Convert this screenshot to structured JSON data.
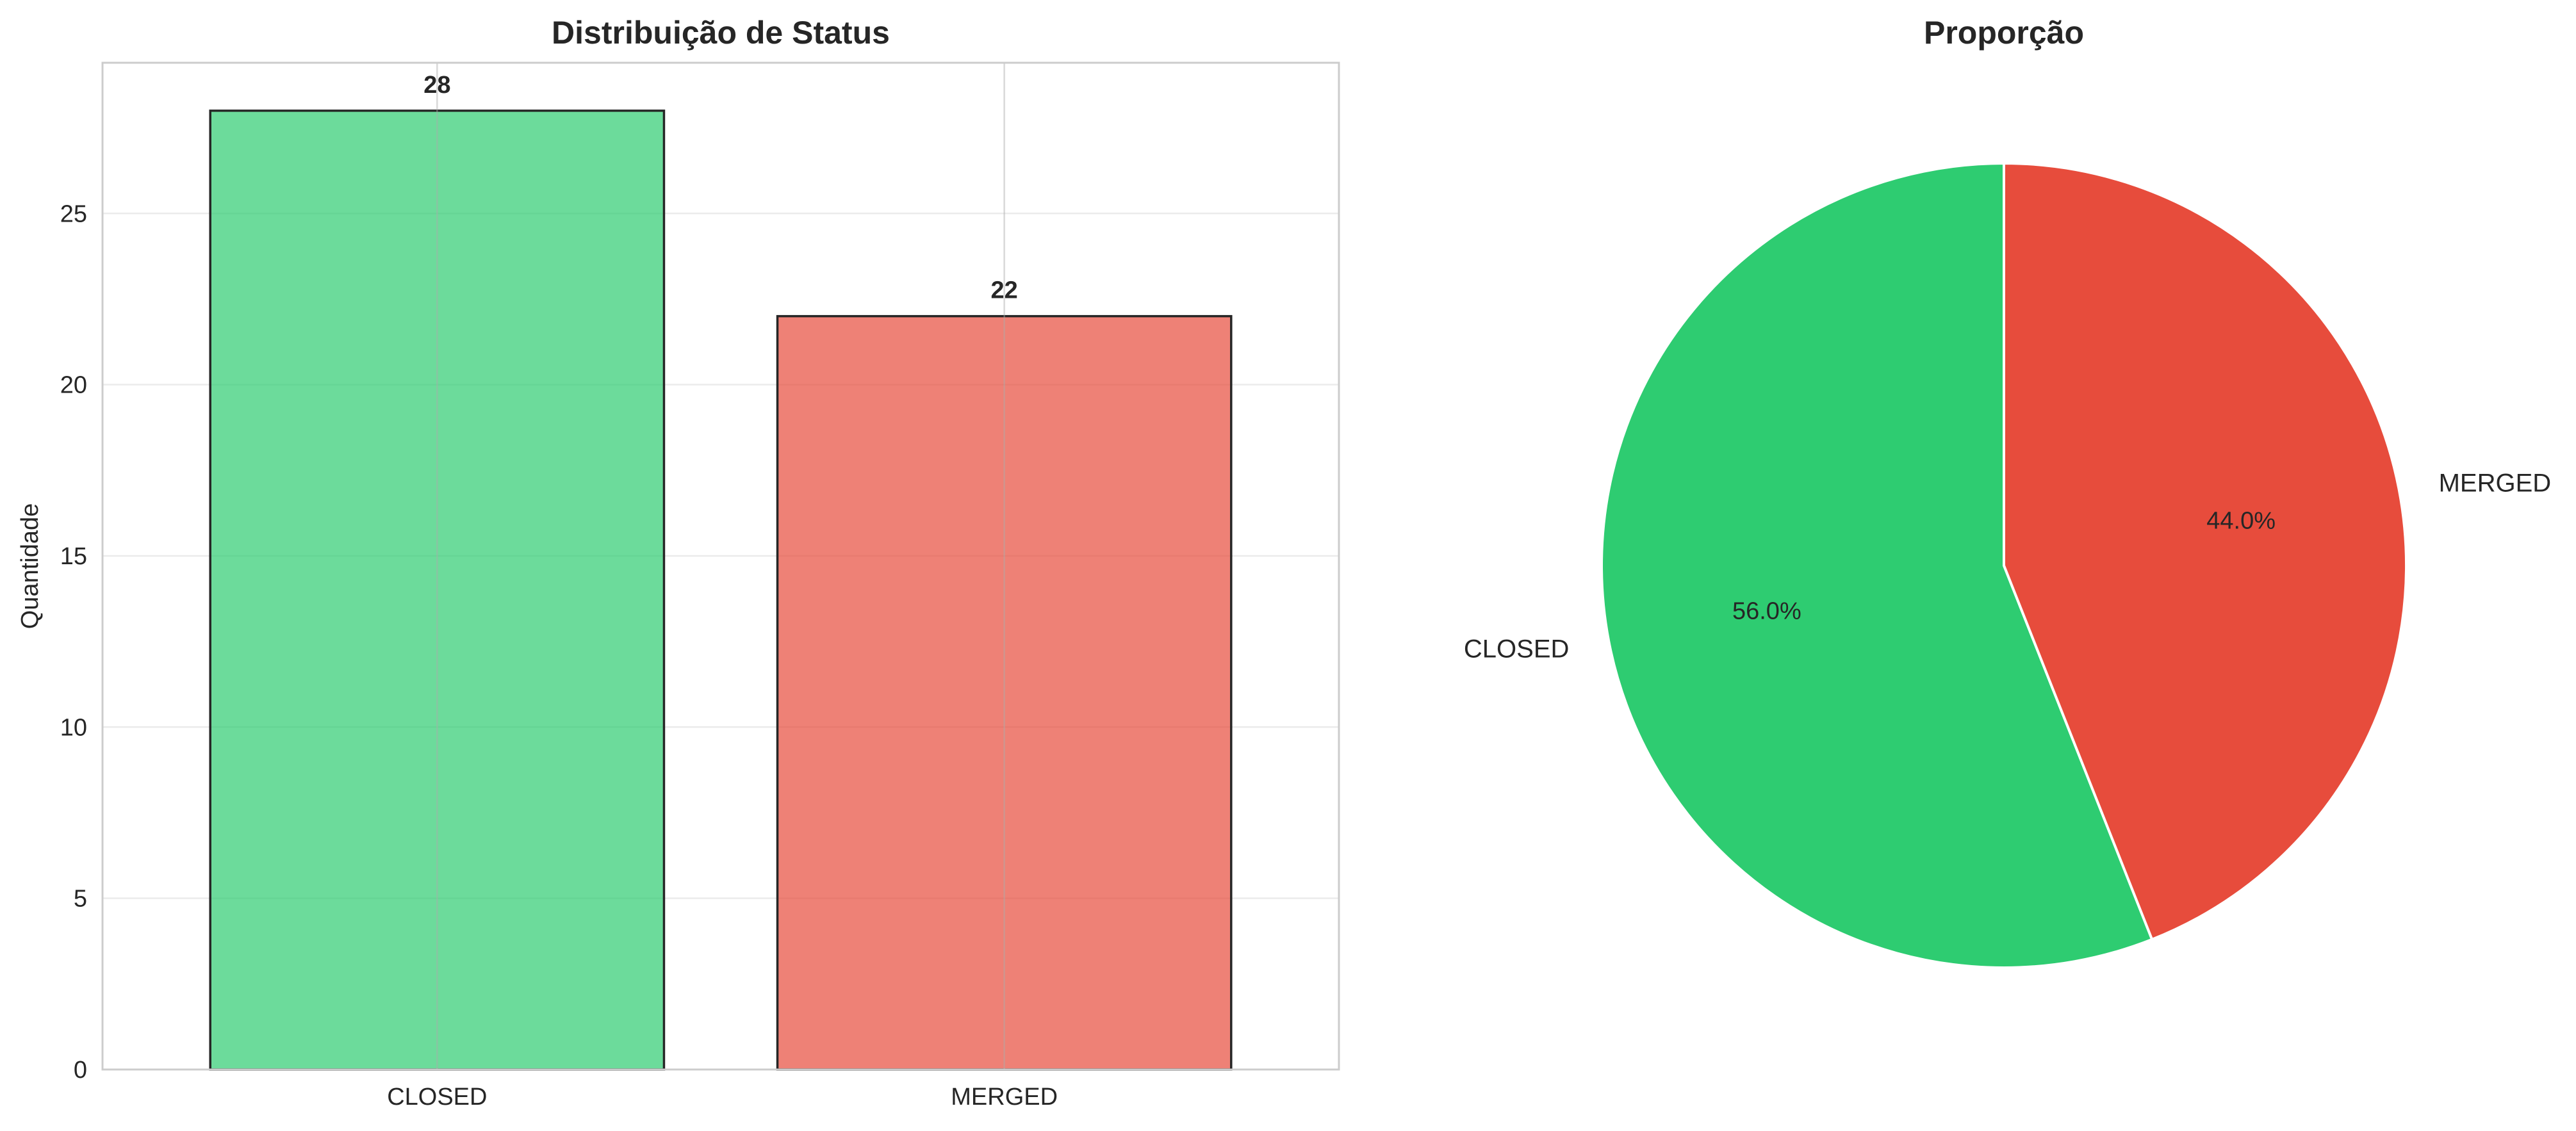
{
  "chart_data": [
    {
      "type": "bar",
      "title": "Distribuição de Status",
      "xlabel": "",
      "ylabel": "Quantidade",
      "categories": [
        "CLOSED",
        "MERGED"
      ],
      "values": [
        28,
        22
      ],
      "value_labels": [
        "28",
        "22"
      ],
      "colors": [
        "#2ecc71",
        "#e74c3c"
      ],
      "ylim": [
        0,
        29.4
      ],
      "yticks": [
        0,
        5,
        10,
        15,
        20,
        25
      ],
      "ytick_labels": [
        "0",
        "5",
        "10",
        "15",
        "20",
        "25"
      ],
      "grid": true
    },
    {
      "type": "pie",
      "title": "Proporção",
      "labels": [
        "CLOSED",
        "MERGED"
      ],
      "values": [
        28,
        22
      ],
      "percent_labels": [
        "56.0%",
        "44.0%"
      ],
      "colors": [
        "#2ecc71",
        "#e74c3c"
      ]
    }
  ]
}
